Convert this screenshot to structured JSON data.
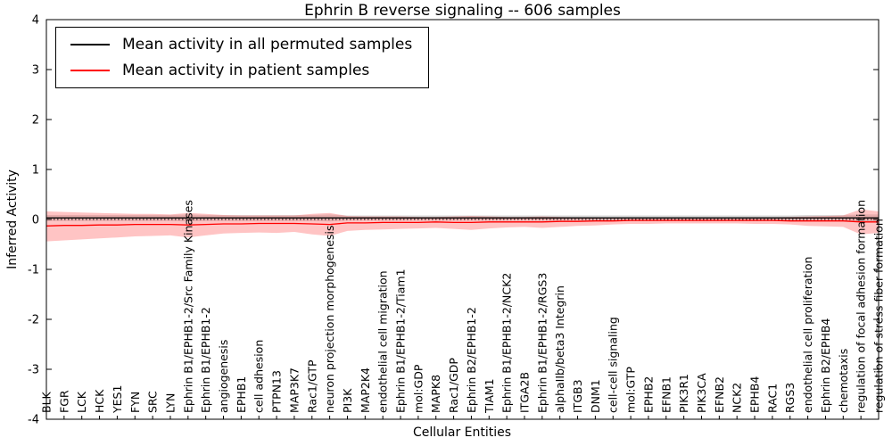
{
  "chart_data": {
    "type": "line",
    "title": "Ephrin B reverse signaling -- 606 samples",
    "xlabel": "Cellular Entities",
    "ylabel": "Inferred Activity",
    "ylim": [
      -4,
      4
    ],
    "yticks": [
      -4,
      -3,
      -2,
      -1,
      0,
      1,
      2,
      3,
      4
    ],
    "zero_line": 0,
    "legend_position": "upper left",
    "grid": false,
    "categories": [
      "BLK",
      "FGR",
      "LCK",
      "HCK",
      "YES1",
      "FYN",
      "SRC",
      "LYN",
      "Ephrin B1/EPHB1-2/Src Family Kinases",
      "Ephrin B1/EPHB1-2",
      "angiogenesis",
      "EPHB1",
      "cell adhesion",
      "PTPN13",
      "MAP3K7",
      "Rac1/GTP",
      "neuron projection morphogenesis",
      "PI3K",
      "MAP2K4",
      "endothelial cell migration",
      "Ephrin B1/EPHB1-2/Tiam1",
      "mol:GDP",
      "MAPK8",
      "Rac1/GDP",
      "Ephrin B2/EPHB1-2",
      "TIAM1",
      "Ephrin B1/EPHB1-2/NCK2",
      "ITGA2B",
      "Ephrin B1/EPHB1-2/RGS3",
      "alphaIIb/beta3 Integrin",
      "ITGB3",
      "DNM1",
      "cell-cell signaling",
      "mol:GTP",
      "EPHB2",
      "EFNB1",
      "PIK3R1",
      "PIK3CA",
      "EFNB2",
      "NCK2",
      "EPHB4",
      "RAC1",
      "RGS3",
      "endothelial cell proliferation",
      "Ephrin B2/EPHB4",
      "chemotaxis",
      "regulation of focal adhesion formation",
      "regulation of stress fiber formation"
    ],
    "series": [
      {
        "id": "permuted",
        "name": "Mean activity in all permuted samples",
        "color": "#000000",
        "band_color": "#999999",
        "band_opacity": 0.35,
        "values": [
          0.03,
          0.03,
          0.03,
          0.03,
          0.03,
          0.03,
          0.03,
          0.03,
          0.03,
          0.03,
          0.03,
          0.03,
          0.03,
          0.03,
          0.03,
          0.03,
          0.03,
          0.03,
          0.03,
          0.03,
          0.03,
          0.03,
          0.03,
          0.03,
          0.03,
          0.03,
          0.03,
          0.03,
          0.03,
          0.03,
          0.03,
          0.03,
          0.03,
          0.03,
          0.03,
          0.03,
          0.03,
          0.03,
          0.03,
          0.03,
          0.03,
          0.03,
          0.03,
          0.03,
          0.03,
          0.03,
          0.03,
          0.03
        ],
        "upper": [
          0.09,
          0.09,
          0.09,
          0.09,
          0.09,
          0.09,
          0.09,
          0.09,
          0.1,
          0.09,
          0.09,
          0.09,
          0.09,
          0.09,
          0.09,
          0.09,
          0.1,
          0.08,
          0.08,
          0.08,
          0.08,
          0.08,
          0.08,
          0.08,
          0.08,
          0.08,
          0.08,
          0.08,
          0.08,
          0.08,
          0.08,
          0.08,
          0.08,
          0.08,
          0.08,
          0.08,
          0.08,
          0.08,
          0.08,
          0.08,
          0.08,
          0.08,
          0.08,
          0.09,
          0.09,
          0.09,
          0.1,
          0.1
        ],
        "lower": [
          -0.03,
          -0.03,
          -0.03,
          -0.03,
          -0.03,
          -0.03,
          -0.03,
          -0.03,
          -0.04,
          -0.03,
          -0.03,
          -0.03,
          -0.03,
          -0.03,
          -0.03,
          -0.03,
          -0.04,
          -0.02,
          -0.02,
          -0.02,
          -0.02,
          -0.02,
          -0.02,
          -0.02,
          -0.02,
          -0.02,
          -0.02,
          -0.02,
          -0.02,
          -0.02,
          -0.02,
          -0.02,
          -0.02,
          -0.02,
          -0.02,
          -0.02,
          -0.02,
          -0.02,
          -0.02,
          -0.02,
          -0.02,
          -0.02,
          -0.02,
          -0.03,
          -0.03,
          -0.03,
          -0.04,
          -0.04
        ]
      },
      {
        "id": "patient",
        "name": "Mean activity in patient samples",
        "color": "#ff0000",
        "band_color": "#ff5555",
        "band_opacity": 0.35,
        "values": [
          -0.13,
          -0.12,
          -0.12,
          -0.11,
          -0.11,
          -0.1,
          -0.1,
          -0.1,
          -0.11,
          -0.1,
          -0.09,
          -0.09,
          -0.08,
          -0.08,
          -0.08,
          -0.09,
          -0.1,
          -0.07,
          -0.07,
          -0.06,
          -0.06,
          -0.06,
          -0.05,
          -0.06,
          -0.06,
          -0.05,
          -0.05,
          -0.05,
          -0.05,
          -0.04,
          -0.04,
          -0.03,
          -0.03,
          -0.02,
          -0.02,
          -0.02,
          -0.02,
          -0.02,
          -0.02,
          -0.02,
          -0.02,
          -0.02,
          -0.03,
          -0.03,
          -0.03,
          -0.03,
          -0.05,
          -0.05
        ],
        "upper": [
          0.16,
          0.15,
          0.14,
          0.13,
          0.12,
          0.11,
          0.11,
          0.1,
          0.13,
          0.11,
          0.09,
          0.08,
          0.08,
          0.08,
          0.08,
          0.11,
          0.13,
          0.07,
          0.06,
          0.06,
          0.06,
          0.05,
          0.05,
          0.06,
          0.07,
          0.06,
          0.05,
          0.05,
          0.06,
          0.05,
          0.04,
          0.04,
          0.03,
          0.03,
          0.03,
          0.03,
          0.03,
          0.03,
          0.03,
          0.03,
          0.04,
          0.04,
          0.05,
          0.06,
          0.07,
          0.08,
          0.2,
          0.16
        ],
        "lower": [
          -0.44,
          -0.42,
          -0.4,
          -0.38,
          -0.36,
          -0.34,
          -0.33,
          -0.32,
          -0.36,
          -0.32,
          -0.28,
          -0.27,
          -0.26,
          -0.27,
          -0.25,
          -0.3,
          -0.33,
          -0.23,
          -0.21,
          -0.2,
          -0.19,
          -0.18,
          -0.17,
          -0.19,
          -0.21,
          -0.18,
          -0.16,
          -0.15,
          -0.17,
          -0.15,
          -0.13,
          -0.12,
          -0.1,
          -0.09,
          -0.09,
          -0.08,
          -0.08,
          -0.08,
          -0.08,
          -0.08,
          -0.09,
          -0.09,
          -0.1,
          -0.13,
          -0.14,
          -0.15,
          -0.3,
          -0.27
        ]
      }
    ]
  }
}
